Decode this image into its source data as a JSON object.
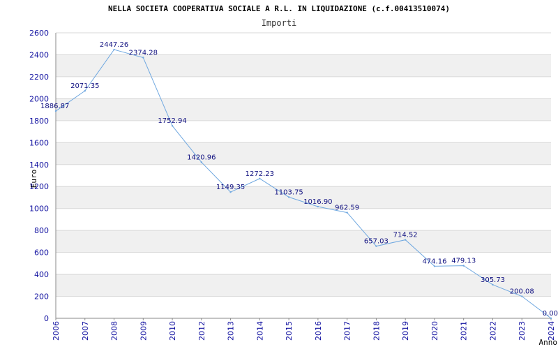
{
  "chart_data": {
    "type": "line",
    "title": "NELLA SOCIETA COOPERATIVA SOCIALE A R.L. IN LIQUIDAZIONE (c.f.00413510074)",
    "subtitle": "Importi",
    "xlabel": "Anno",
    "ylabel": "Euro",
    "ylim": [
      0,
      2600
    ],
    "yticks": [
      0,
      200,
      400,
      600,
      800,
      1000,
      1200,
      1400,
      1600,
      1800,
      2000,
      2200,
      2400,
      2600
    ],
    "categories": [
      "2006",
      "2007",
      "2008",
      "2009",
      "2010",
      "2012",
      "2013",
      "2014",
      "2015",
      "2016",
      "2017",
      "2018",
      "2019",
      "2020",
      "2021",
      "2022",
      "2023",
      "2024"
    ],
    "values": [
      1886.87,
      2071.35,
      2447.26,
      2374.28,
      1752.94,
      1420.96,
      1149.35,
      1272.23,
      1103.75,
      1016.9,
      962.59,
      657.03,
      714.52,
      474.16,
      479.13,
      305.73,
      200.08,
      0.0
    ],
    "value_labels": [
      "1886.87",
      "2071.35",
      "2447.26",
      "2374.28",
      "1752.94",
      "1420.96",
      "1149.35",
      "1272.23",
      "1103.75",
      "1016.90",
      "962.59",
      "657.03",
      "714.52",
      "474.16",
      "479.13",
      "305.73",
      "200.08",
      "0.00"
    ],
    "colors": {
      "line": "#70a8e0",
      "band": "#f0f0f0",
      "grid": "#d8d8d8",
      "axis": "#888888",
      "tick_text": "#1010a0",
      "label_text": "#101080"
    },
    "grid": true
  }
}
